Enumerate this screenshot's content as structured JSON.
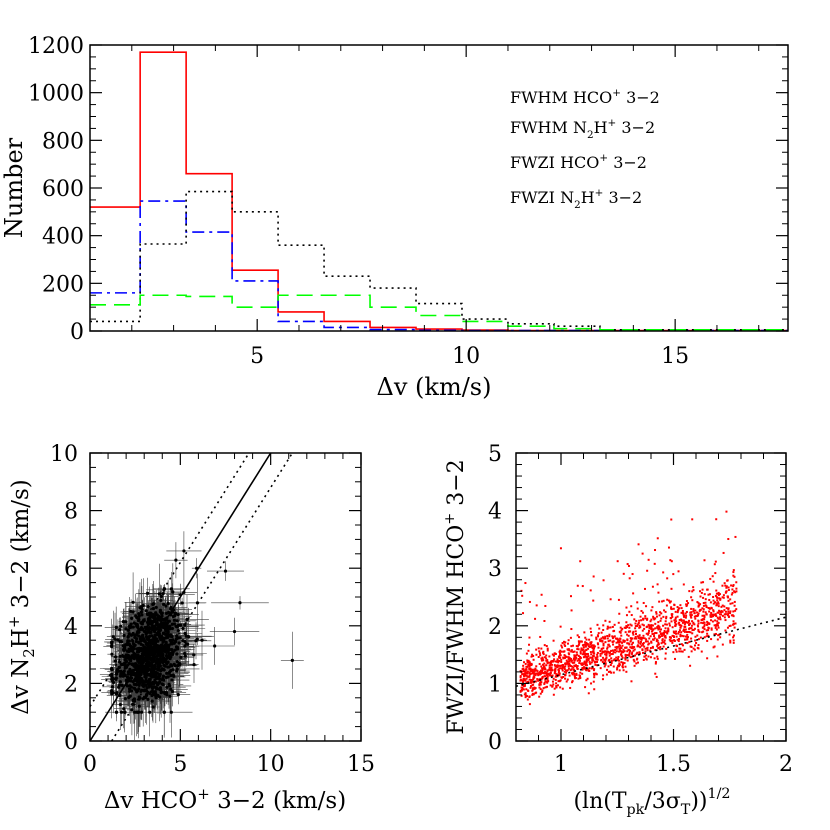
{
  "chart_data": [
    {
      "type": "histogram",
      "xlabel": "Δv (km/s)",
      "ylabel": "Number",
      "xlim": [
        1,
        17.7
      ],
      "ylim": [
        0,
        1200
      ],
      "xticks": [
        "5",
        "10",
        "15"
      ],
      "yticks": [
        "0",
        "200",
        "400",
        "600",
        "800",
        "1000",
        "1200"
      ],
      "legend_position": "top-right",
      "series": [
        {
          "name_parts": [
            "FWHM HCO",
            "+",
            " 3−2"
          ],
          "color": "#ff0000",
          "dash": "solid",
          "bins": [
            [
              1,
              2.2,
              520
            ],
            [
              2.2,
              3.3,
              1170
            ],
            [
              3.3,
              4.4,
              660
            ],
            [
              4.4,
              5.5,
              255
            ],
            [
              5.5,
              6.6,
              80
            ],
            [
              6.6,
              7.7,
              40
            ],
            [
              7.7,
              8.8,
              15
            ],
            [
              8.8,
              9.9,
              8
            ],
            [
              9.9,
              11,
              4
            ],
            [
              11,
              17.7,
              2
            ]
          ]
        },
        {
          "name_parts": [
            "FWHM N",
            "2",
            "H",
            "+",
            " 3−2"
          ],
          "color": "#0000ff",
          "dash": "longdash-dot",
          "bins": [
            [
              1,
              2.2,
              160
            ],
            [
              2.2,
              3.3,
              545
            ],
            [
              3.3,
              4.4,
              415
            ],
            [
              4.4,
              5.5,
              210
            ],
            [
              5.5,
              6.6,
              40
            ],
            [
              6.6,
              7.7,
              15
            ],
            [
              7.7,
              8.8,
              6
            ],
            [
              8.8,
              9.9,
              3
            ],
            [
              9.9,
              17.7,
              2
            ]
          ]
        },
        {
          "name_parts": [
            "FWZI HCO",
            "+",
            " 3−2"
          ],
          "color": "#000000",
          "dash": "dotted",
          "bins": [
            [
              1,
              2.2,
              40
            ],
            [
              2.2,
              3.3,
              365
            ],
            [
              3.3,
              4.4,
              585
            ],
            [
              4.4,
              5.5,
              500
            ],
            [
              5.5,
              6.6,
              360
            ],
            [
              6.6,
              7.7,
              230
            ],
            [
              7.7,
              8.8,
              180
            ],
            [
              8.8,
              9.9,
              115
            ],
            [
              9.9,
              11,
              50
            ],
            [
              11,
              12.1,
              30
            ],
            [
              12.1,
              13.2,
              20
            ],
            [
              13.2,
              17.7,
              5
            ]
          ]
        },
        {
          "name_parts": [
            "FWZI N",
            "2",
            "H",
            "+",
            " 3−2"
          ],
          "color": "#00ff00",
          "dash": "longdash",
          "bins": [
            [
              1,
              2.2,
              110
            ],
            [
              2.2,
              3.3,
              150
            ],
            [
              3.3,
              4.4,
              145
            ],
            [
              4.4,
              5.5,
              100
            ],
            [
              5.5,
              6.6,
              150
            ],
            [
              6.6,
              7.7,
              150
            ],
            [
              7.7,
              8.8,
              100
            ],
            [
              8.8,
              9.9,
              65
            ],
            [
              9.9,
              11,
              40
            ],
            [
              11,
              12.1,
              20
            ],
            [
              12.1,
              13.2,
              10
            ],
            [
              13.2,
              17.7,
              5
            ]
          ]
        }
      ]
    },
    {
      "type": "scatter",
      "xlabel_parts": [
        "Δv HCO",
        "+",
        " 3−2 (km/s)"
      ],
      "ylabel_parts": [
        "Δv N",
        "2",
        "H",
        "+",
        " 3−2 (km/s)"
      ],
      "xlim": [
        0,
        15
      ],
      "ylim": [
        0,
        10
      ],
      "xticks": [
        "0",
        "5",
        "10",
        "15"
      ],
      "yticks": [
        "0",
        "2",
        "4",
        "6",
        "8",
        "10"
      ],
      "n_points": 1100,
      "x_center": 3.3,
      "x_spread": 1.1,
      "y_center": 3.0,
      "y_spread": 0.85,
      "outliers": [
        [
          11.2,
          2.8
        ],
        [
          8.3,
          4.8
        ],
        [
          8.0,
          3.8
        ],
        [
          7.5,
          5.9
        ],
        [
          6.9,
          3.3
        ],
        [
          6.2,
          3.5
        ],
        [
          5.9,
          6.0
        ],
        [
          5.2,
          6.6
        ]
      ],
      "lines": [
        {
          "label": "y = x",
          "x": [
            0,
            10
          ],
          "y": [
            0,
            10
          ],
          "dash": "solid"
        },
        {
          "label": "upper",
          "x": [
            0,
            8.8
          ],
          "y": [
            1.2,
            10
          ],
          "dash": "dotted"
        },
        {
          "label": "lower",
          "x": [
            1.2,
            11.2
          ],
          "y": [
            0,
            10
          ],
          "dash": "dotted"
        }
      ]
    },
    {
      "type": "scatter",
      "xlabel_parts": [
        "(ln(T",
        "pk",
        "/3σ",
        "T",
        "))",
        "1/2"
      ],
      "ylabel_parts": [
        "FWZI/FWHM HCO",
        "+",
        " 3−2"
      ],
      "xlim": [
        0.8,
        2
      ],
      "ylim": [
        0,
        5
      ],
      "xticks": [
        "1",
        "1.5",
        "2"
      ],
      "yticks": [
        "0",
        "1",
        "2",
        "3",
        "4",
        "5"
      ],
      "color": "#ff0000",
      "n_points": 1700,
      "x_range": [
        0.82,
        1.78
      ],
      "trend": {
        "slope": 1.35,
        "intercept": -0.05,
        "scatter": 0.22
      },
      "lines": [
        {
          "label": "fit",
          "x": [
            0.8,
            2
          ],
          "y": [
            0.95,
            2.15
          ],
          "dash": "dotted"
        }
      ]
    }
  ]
}
